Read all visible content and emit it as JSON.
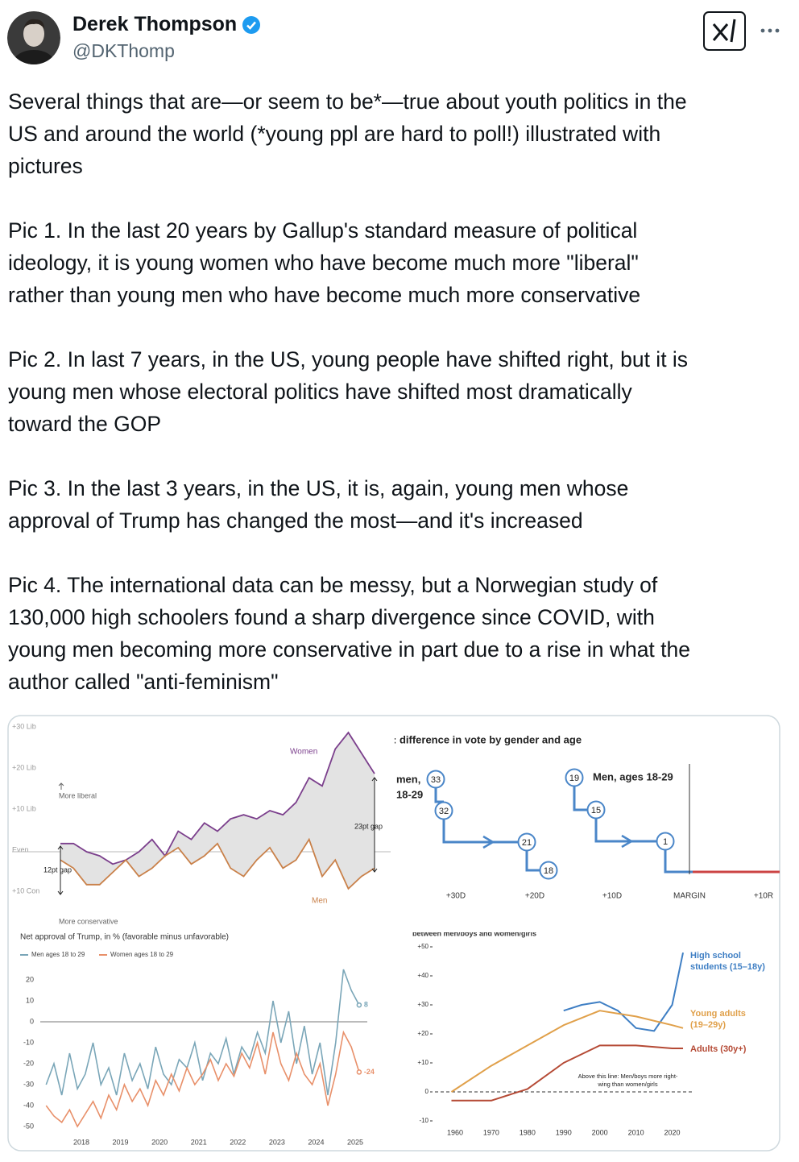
{
  "author": {
    "name": "Derek Thompson",
    "handle": "@DKThomp"
  },
  "tweet": {
    "paragraphs": [
      [
        "Several things that are—or seem to be*—true about youth politics in the",
        "US and around the world (*young ppl are hard to poll!) illustrated with",
        "pictures"
      ],
      [
        "Pic 1. In the last 20 years by Gallup's standard measure of political",
        "ideology, it is young women who have become much more \"liberal\"",
        "rather than young men who have become much more conservative"
      ],
      [
        "Pic 2. In last 7 years, in the US, young people have shifted right, but it is",
        "young men whose electoral politics have shifted most dramatically",
        "toward the GOP"
      ],
      [
        "Pic 3. In the last 3 years, in the US, it is, again, young men whose",
        "approval of Trump has changed the most—and it's increased"
      ],
      [
        "Pic 4. The international data can be messy, but a Norwegian study of",
        "130,000 high schoolers found a sharp divergence since COVID, with",
        "young men becoming more conservative in part due to a rise in what the",
        "author called \"anti-feminism\""
      ]
    ]
  },
  "images": [
    {
      "type": "line",
      "annotations": {
        "liberal": "More liberal",
        "conservative": "More conservative",
        "gap_start": "12pt gap",
        "gap_end": "23pt gap"
      },
      "series": [
        {
          "name": "Women",
          "color": "#7b3f8c",
          "values": [
            2,
            2,
            0,
            -1,
            -3,
            -2,
            0,
            3,
            -1,
            5,
            3,
            7,
            5,
            8,
            9,
            8,
            10,
            9,
            12,
            18,
            16,
            25,
            29,
            24,
            19
          ]
        },
        {
          "name": "Men",
          "color": "#c9814a",
          "values": [
            -2,
            -4,
            -8,
            -8,
            -5,
            -2,
            -6,
            -4,
            -1,
            1,
            -3,
            -1,
            2,
            -4,
            -6,
            -2,
            1,
            -4,
            -2,
            3,
            -6,
            -2,
            -9,
            -6,
            -4
          ]
        }
      ],
      "ylim": [
        -12,
        32
      ],
      "yticks": [
        {
          "value": 30,
          "label": "+30 Lib"
        },
        {
          "value": 20,
          "label": "+20 Lib"
        },
        {
          "value": 10,
          "label": "+10 Lib"
        },
        {
          "value": 0,
          "label": "Even"
        },
        {
          "value": -10,
          "label": "+10 Con"
        }
      ]
    },
    {
      "type": "flow",
      "title": ": difference in vote by gender and age",
      "groups": [
        {
          "label": [
            "men,",
            "18-29"
          ],
          "values": [
            33,
            32,
            21,
            18
          ]
        },
        {
          "label": [
            "Men, ages 18-29"
          ],
          "values": [
            19,
            15,
            1
          ]
        }
      ],
      "axis_labels": [
        "+30D",
        "+20D",
        "+10D",
        "MARGIN",
        "+10R"
      ]
    },
    {
      "type": "line",
      "title": "Net approval of Trump, in % (favorable minus unfavorable)",
      "x": [
        2017.1,
        2017.3,
        2017.5,
        2017.7,
        2017.9,
        2018.1,
        2018.3,
        2018.5,
        2018.7,
        2018.9,
        2019.1,
        2019.3,
        2019.5,
        2019.7,
        2019.9,
        2020.1,
        2020.3,
        2020.5,
        2020.7,
        2020.9,
        2021.1,
        2021.3,
        2021.5,
        2021.7,
        2021.9,
        2022.1,
        2022.3,
        2022.5,
        2022.7,
        2022.9,
        2023.1,
        2023.3,
        2023.5,
        2023.7,
        2023.9,
        2024.1,
        2024.3,
        2024.5,
        2024.7,
        2024.9,
        2025.1
      ],
      "series": [
        {
          "name": "Men ages 18 to 29",
          "color": "#7aa6b8",
          "values": [
            -30,
            -20,
            -35,
            -15,
            -32,
            -25,
            -10,
            -30,
            -22,
            -35,
            -15,
            -28,
            -20,
            -32,
            -12,
            -25,
            -30,
            -18,
            -22,
            -10,
            -28,
            -15,
            -20,
            -8,
            -25,
            -12,
            -18,
            -5,
            -15,
            10,
            -10,
            5,
            -20,
            -2,
            -25,
            -10,
            -35,
            -10,
            25,
            15,
            8
          ]
        },
        {
          "name": "Women ages 18 to 29",
          "color": "#e8906a",
          "values": [
            -40,
            -45,
            -48,
            -42,
            -50,
            -44,
            -38,
            -46,
            -35,
            -42,
            -30,
            -38,
            -32,
            -40,
            -28,
            -35,
            -25,
            -33,
            -22,
            -30,
            -25,
            -18,
            -28,
            -20,
            -26,
            -15,
            -22,
            -10,
            -25,
            -5,
            -20,
            -28,
            -15,
            -25,
            -30,
            -20,
            -40,
            -25,
            -5,
            -12,
            -24
          ]
        }
      ],
      "xlim": [
        2017,
        2025.3
      ],
      "xticks": [
        2018,
        2019,
        2020,
        2021,
        2022,
        2023,
        2024,
        2025
      ],
      "ylim": [
        -53,
        23
      ],
      "yticks": [
        20,
        10,
        0,
        -10,
        -20,
        -30,
        -40,
        -50
      ]
    },
    {
      "type": "line",
      "subtitle": "between men/boys and women/girls",
      "annotation": "Above this line: Men/boys more right-wing than women/girls",
      "series": [
        {
          "name": "High school students (15–18y)",
          "color": "#3f7fc4",
          "x": [
            1990,
            1995,
            2000,
            2005,
            2010,
            2015,
            2020,
            2023
          ],
          "values": [
            28,
            30,
            31,
            28,
            22,
            21,
            30,
            48
          ]
        },
        {
          "name": "Young adults (19–29y)",
          "color": "#e0a04a",
          "x": [
            1959,
            1970,
            1980,
            1990,
            2000,
            2010,
            2020,
            2023
          ],
          "values": [
            0,
            9,
            16,
            23,
            28,
            26,
            23,
            22
          ]
        },
        {
          "name": "Adults (30y+)",
          "color": "#b54a35",
          "x": [
            1959,
            1970,
            1980,
            1990,
            2000,
            2010,
            2020,
            2023
          ],
          "values": [
            -3,
            -3,
            1,
            10,
            16,
            16,
            15,
            15
          ]
        }
      ],
      "xlim": [
        1955,
        2026
      ],
      "xticks": [
        1960,
        1970,
        1980,
        1990,
        2000,
        2010,
        2020
      ],
      "ylim": [
        -12,
        52
      ],
      "yticks": [
        {
          "value": 50,
          "label": "+50"
        },
        {
          "value": 40,
          "label": "+40"
        },
        {
          "value": 30,
          "label": "+30"
        },
        {
          "value": 20,
          "label": "+20"
        },
        {
          "value": 10,
          "label": "+10"
        },
        0,
        -10
      ]
    }
  ]
}
